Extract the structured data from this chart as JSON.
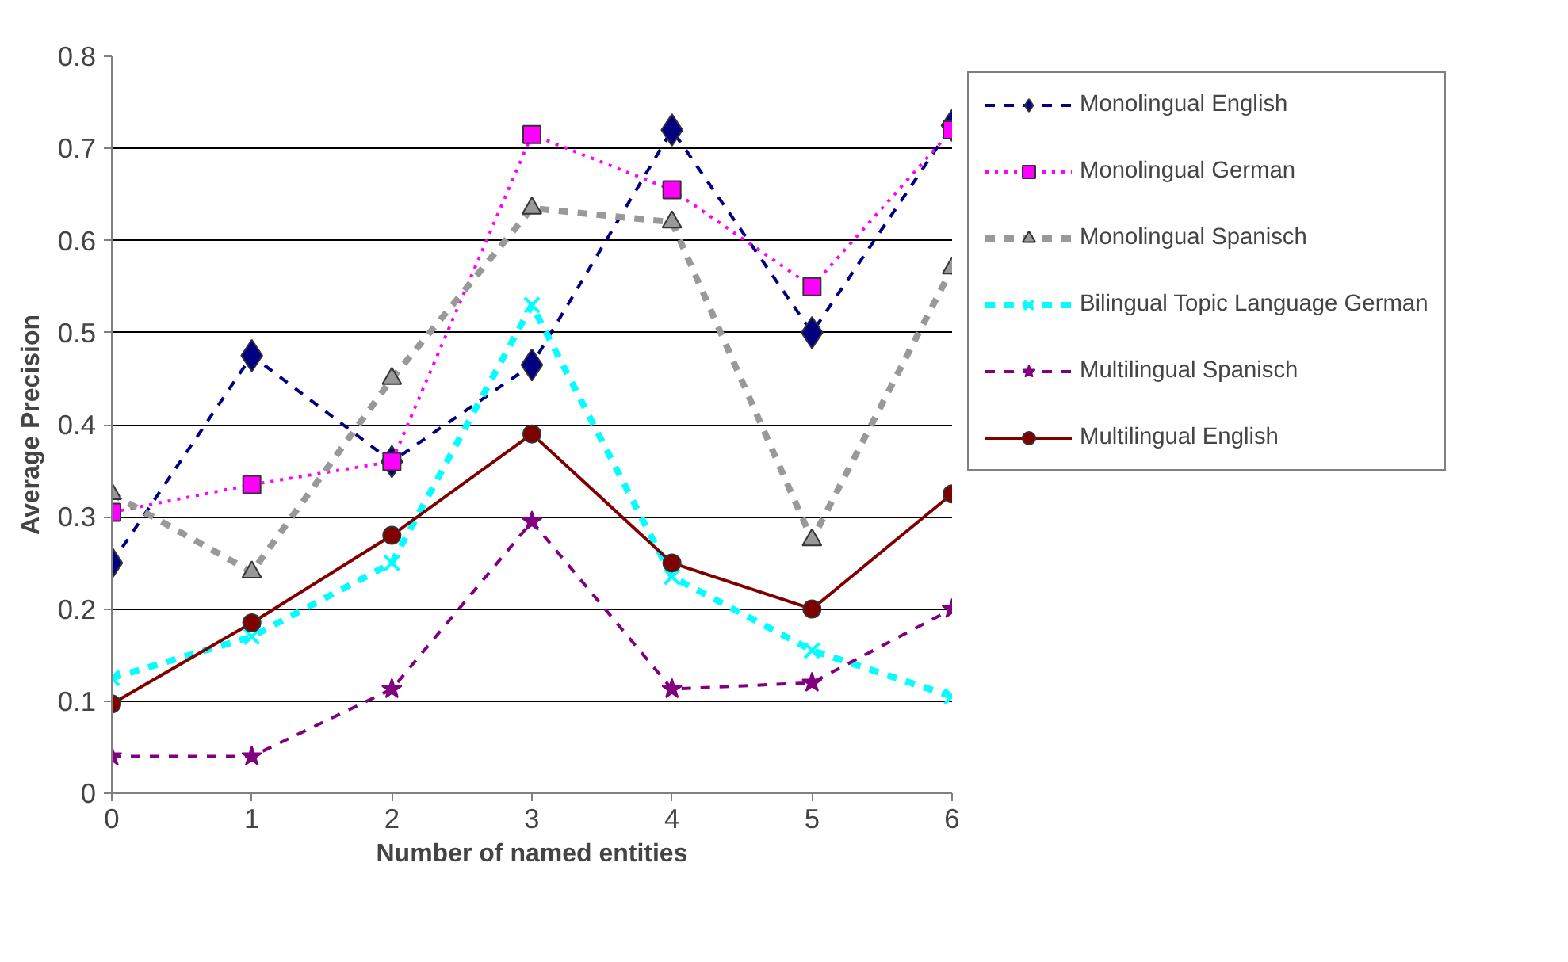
{
  "chart_data": {
    "type": "line",
    "xlabel": "Number of named entities",
    "ylabel": "Average Precision",
    "x": [
      0,
      1,
      2,
      3,
      4,
      5,
      6
    ],
    "xlim": [
      0,
      6
    ],
    "xticks": [
      0,
      1,
      2,
      3,
      4,
      5,
      6
    ],
    "ylim": [
      0,
      0.8
    ],
    "yticks": [
      0,
      0.1,
      0.2,
      0.3,
      0.4,
      0.5,
      0.6,
      0.7,
      0.8
    ],
    "grid": "y",
    "legend": "right",
    "series": [
      {
        "name": "Monolingual English",
        "color": "#000080",
        "marker": "diamond",
        "line_style": "dashed",
        "values": [
          0.25,
          0.475,
          0.36,
          0.465,
          0.72,
          0.5,
          0.725
        ]
      },
      {
        "name": "Monolingual German",
        "color": "#ff00ff",
        "marker": "square",
        "line_style": "dotted",
        "values": [
          0.305,
          0.335,
          0.36,
          0.715,
          0.655,
          0.55,
          0.72
        ]
      },
      {
        "name": "Monolingual Spanisch",
        "color": "#999999",
        "marker": "triangle",
        "line_style": "dashed",
        "values": [
          0.325,
          0.24,
          0.45,
          0.635,
          0.62,
          0.275,
          0.57
        ]
      },
      {
        "name": "Bilingual Topic Language German",
        "color": "#00ffff",
        "marker": "cross",
        "line_style": "dashed",
        "values": [
          0.125,
          0.17,
          0.25,
          0.53,
          0.235,
          0.155,
          0.105
        ]
      },
      {
        "name": "Multilingual Spanisch",
        "color": "#800080",
        "marker": "star",
        "line_style": "dashed",
        "values": [
          0.04,
          0.04,
          0.113,
          0.295,
          0.113,
          0.12,
          0.2
        ]
      },
      {
        "name": "Multilingual English",
        "color": "#800000",
        "marker": "circle",
        "line_style": "solid",
        "values": [
          0.097,
          0.185,
          0.28,
          0.39,
          0.25,
          0.2,
          0.325
        ]
      }
    ]
  }
}
